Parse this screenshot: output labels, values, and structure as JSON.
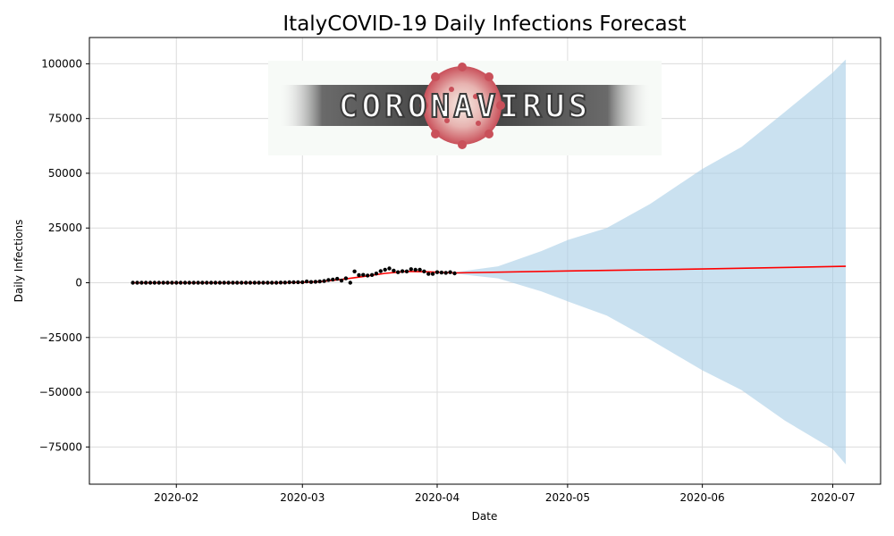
{
  "chart_data": {
    "type": "line",
    "title": "ItalyCOVID-19 Daily Infections Forecast",
    "xlabel": "Date",
    "ylabel": "Daily Infections",
    "x_tick_labels": [
      "2020-02",
      "2020-03",
      "2020-04",
      "2020-05",
      "2020-06",
      "2020-07"
    ],
    "x_ticks": [
      "2020-02-01",
      "2020-03-01",
      "2020-04-01",
      "2020-05-01",
      "2020-06-01",
      "2020-07-01"
    ],
    "xlim": [
      "2020-01-12",
      "2020-07-12"
    ],
    "y_ticks": [
      -75000,
      -50000,
      -25000,
      0,
      25000,
      50000,
      75000,
      100000
    ],
    "y_tick_labels": [
      "−75000",
      "−50000",
      "−25000",
      "0",
      "25000",
      "50000",
      "75000",
      "100000"
    ],
    "ylim": [
      -92000,
      112000
    ],
    "grid": true,
    "colors": {
      "observed": "#000000",
      "forecast": "#ff0000",
      "interval": "#a6cde6"
    },
    "observed": {
      "x": [
        "2020-01-22",
        "2020-01-23",
        "2020-01-24",
        "2020-01-25",
        "2020-01-26",
        "2020-01-27",
        "2020-01-28",
        "2020-01-29",
        "2020-01-30",
        "2020-01-31",
        "2020-02-01",
        "2020-02-02",
        "2020-02-03",
        "2020-02-04",
        "2020-02-05",
        "2020-02-06",
        "2020-02-07",
        "2020-02-08",
        "2020-02-09",
        "2020-02-10",
        "2020-02-11",
        "2020-02-12",
        "2020-02-13",
        "2020-02-14",
        "2020-02-15",
        "2020-02-16",
        "2020-02-17",
        "2020-02-18",
        "2020-02-19",
        "2020-02-20",
        "2020-02-21",
        "2020-02-22",
        "2020-02-23",
        "2020-02-24",
        "2020-02-25",
        "2020-02-26",
        "2020-02-27",
        "2020-02-28",
        "2020-02-29",
        "2020-03-01",
        "2020-03-02",
        "2020-03-03",
        "2020-03-04",
        "2020-03-05",
        "2020-03-06",
        "2020-03-07",
        "2020-03-08",
        "2020-03-09",
        "2020-03-10",
        "2020-03-11",
        "2020-03-12",
        "2020-03-13",
        "2020-03-14",
        "2020-03-15",
        "2020-03-16",
        "2020-03-17",
        "2020-03-18",
        "2020-03-19",
        "2020-03-20",
        "2020-03-21",
        "2020-03-22",
        "2020-03-23",
        "2020-03-24",
        "2020-03-25",
        "2020-03-26",
        "2020-03-27",
        "2020-03-28",
        "2020-03-29",
        "2020-03-30",
        "2020-03-31",
        "2020-04-01",
        "2020-04-02",
        "2020-04-03",
        "2020-04-04",
        "2020-04-05"
      ],
      "y": [
        0,
        0,
        0,
        0,
        0,
        0,
        0,
        0,
        0,
        0,
        0,
        0,
        0,
        0,
        0,
        0,
        0,
        0,
        0,
        0,
        0,
        0,
        0,
        0,
        0,
        0,
        0,
        0,
        0,
        0,
        0,
        0,
        0,
        0,
        100,
        100,
        200,
        200,
        250,
        240,
        560,
        340,
        470,
        590,
        780,
        1250,
        1490,
        1800,
        980,
        2000,
        0,
        5200,
        3500,
        3600,
        3300,
        3550,
        4200,
        5300,
        5950,
        6550,
        5550,
        4800,
        5250,
        5200,
        6200,
        5900,
        5950,
        5200,
        4050,
        4050,
        4800,
        4650,
        4550,
        4800,
        4300
      ]
    },
    "forecast": {
      "x": [
        "2020-01-22",
        "2020-02-10",
        "2020-02-25",
        "2020-03-01",
        "2020-03-05",
        "2020-03-10",
        "2020-03-15",
        "2020-03-20",
        "2020-03-25",
        "2020-03-30",
        "2020-04-05",
        "2020-05-01",
        "2020-06-01",
        "2020-07-04"
      ],
      "y": [
        0,
        0,
        0,
        150,
        500,
        1500,
        2800,
        4300,
        5200,
        5000,
        4500,
        5400,
        6300,
        7500
      ]
    },
    "interval": {
      "x": [
        "2020-04-05",
        "2020-04-15",
        "2020-04-25",
        "2020-05-01",
        "2020-05-10",
        "2020-05-20",
        "2020-06-01",
        "2020-06-10",
        "2020-06-20",
        "2020-07-01",
        "2020-07-04"
      ],
      "upper": [
        4800,
        7500,
        14500,
        19500,
        25000,
        36000,
        52000,
        62000,
        78000,
        96000,
        102000
      ],
      "lower": [
        4200,
        2000,
        -4000,
        -8500,
        -15000,
        -26000,
        -40000,
        -49000,
        -63000,
        -76000,
        -83000
      ]
    }
  },
  "logo": {
    "text": "CORONAVIRUS",
    "colors": {
      "band": "#5a5a5a",
      "virus": "#c9505a",
      "virus_core": "#f2e6dc"
    }
  }
}
